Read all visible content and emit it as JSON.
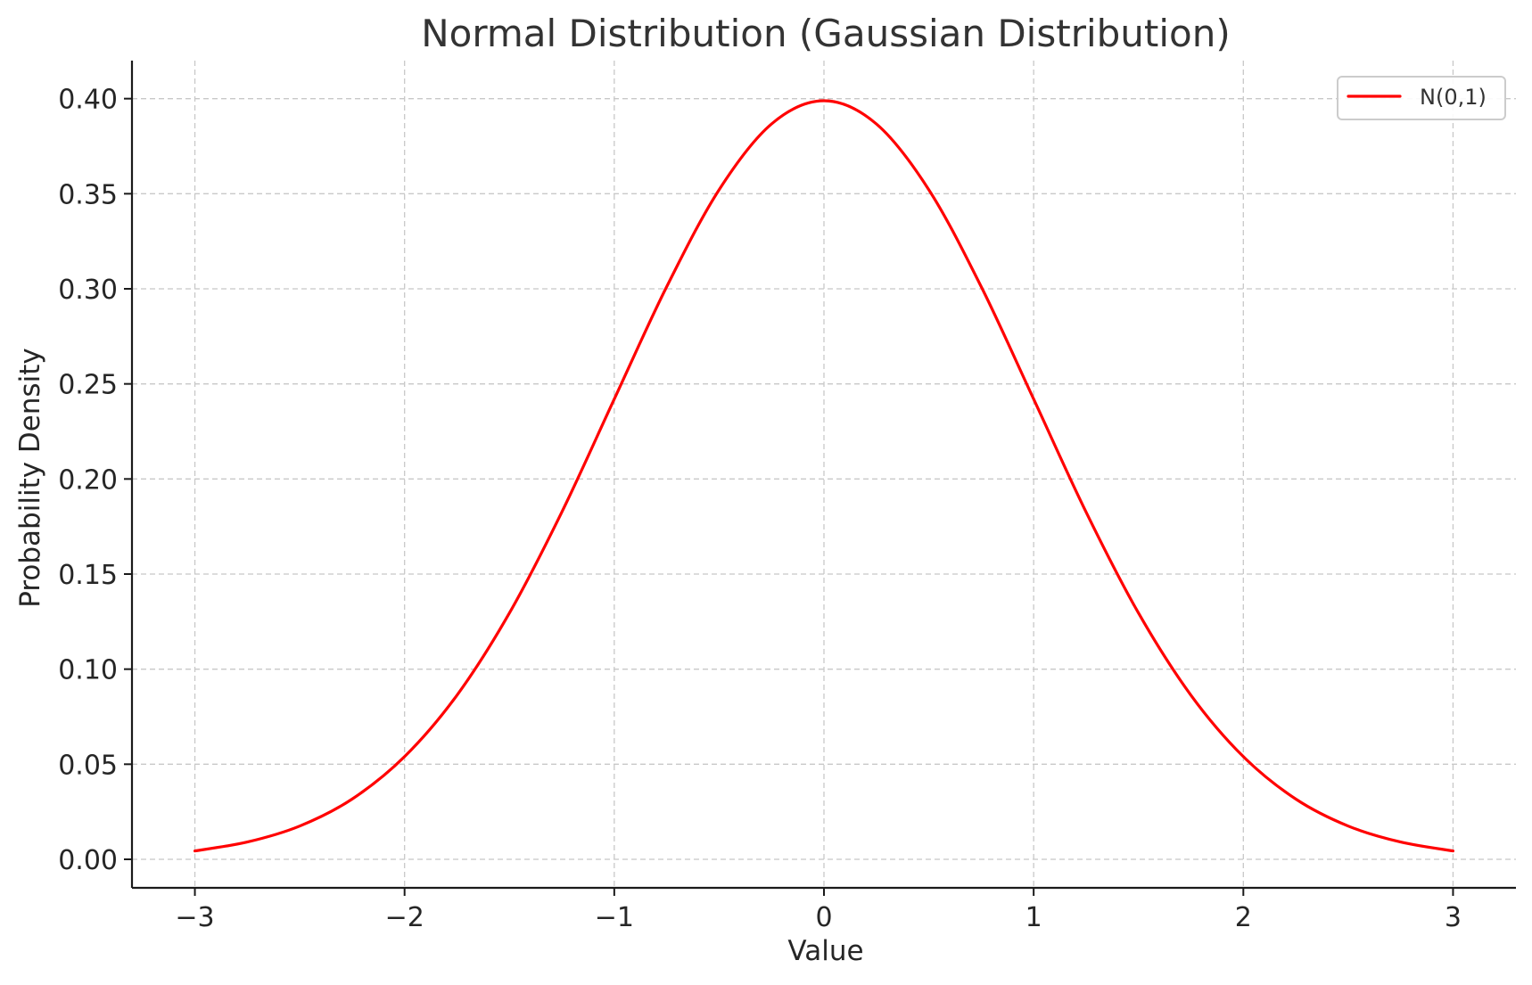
{
  "chart_data": {
    "type": "line",
    "title": "Normal Distribution (Gaussian Distribution)",
    "xlabel": "Value",
    "ylabel": "Probability Density",
    "xlim": [
      -3.3,
      3.3
    ],
    "ylim": [
      -0.015,
      0.42
    ],
    "xticks": [
      -3,
      -2,
      -1,
      0,
      1,
      2,
      3
    ],
    "xtick_labels": [
      "−3",
      "−2",
      "−1",
      "0",
      "1",
      "2",
      "3"
    ],
    "yticks": [
      0.0,
      0.05,
      0.1,
      0.15,
      0.2,
      0.25,
      0.3,
      0.35,
      0.4
    ],
    "ytick_labels": [
      "0.00",
      "0.05",
      "0.10",
      "0.15",
      "0.20",
      "0.25",
      "0.30",
      "0.35",
      "0.40"
    ],
    "grid": true,
    "legend_position": "top-right",
    "series": [
      {
        "name": "N(0,1)",
        "color": "#ff0000",
        "x": [
          -3.0,
          -2.75,
          -2.5,
          -2.25,
          -2.0,
          -1.75,
          -1.5,
          -1.25,
          -1.0,
          -0.75,
          -0.5,
          -0.25,
          0.0,
          0.25,
          0.5,
          0.75,
          1.0,
          1.25,
          1.5,
          1.75,
          2.0,
          2.25,
          2.5,
          2.75,
          3.0
        ],
        "y": [
          0.0044,
          0.0091,
          0.0175,
          0.0317,
          0.054,
          0.0863,
          0.1295,
          0.1826,
          0.242,
          0.3011,
          0.3521,
          0.3867,
          0.3989,
          0.3867,
          0.3521,
          0.3011,
          0.242,
          0.1826,
          0.1295,
          0.0863,
          0.054,
          0.0317,
          0.0175,
          0.0091,
          0.0044
        ]
      }
    ]
  }
}
